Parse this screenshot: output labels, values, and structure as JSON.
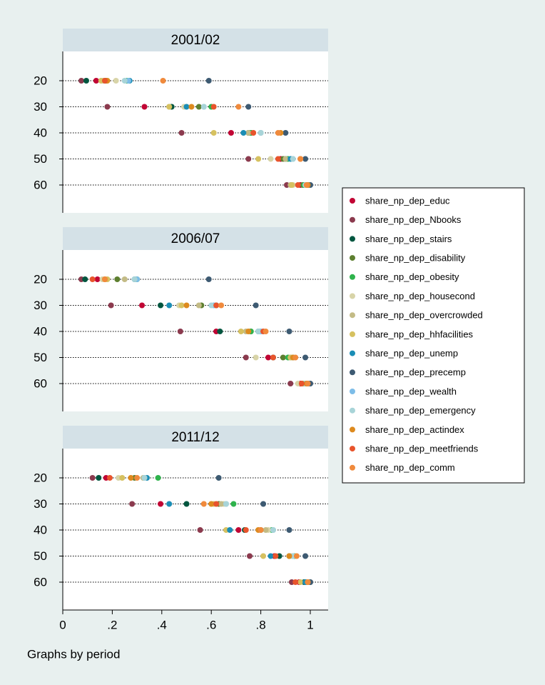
{
  "chart_data": {
    "type": "dot",
    "note": "Graphs by period",
    "categories": [
      20,
      30,
      40,
      50,
      60
    ],
    "xlim": [
      0,
      1
    ],
    "xticks": [
      0,
      {
        "value": 0.2,
        "label": ".2"
      },
      {
        "value": 0.4,
        "label": ".4"
      },
      {
        "value": 0.6,
        "label": ".6"
      },
      {
        "value": 0.8,
        "label": ".8"
      },
      1
    ],
    "series": [
      {
        "name": "share_np_dep_educ",
        "color": "#c10534"
      },
      {
        "name": "share_np_dep_Nbooks",
        "color": "#8b3a4e"
      },
      {
        "name": "share_np_dep_stairs",
        "color": "#00563f"
      },
      {
        "name": "share_np_dep_disability",
        "color": "#5d7f2f"
      },
      {
        "name": "share_np_dep_obesity",
        "color": "#2fb34c"
      },
      {
        "name": "share_np_dep_housecond",
        "color": "#d8d4a8"
      },
      {
        "name": "share_np_dep_overcrowded",
        "color": "#c3bb86"
      },
      {
        "name": "share_np_dep_hhfacilities",
        "color": "#d6c160"
      },
      {
        "name": "share_np_dep_unemp",
        "color": "#1a8db5"
      },
      {
        "name": "share_np_dep_precemp",
        "color": "#3d5a72"
      },
      {
        "name": "share_np_dep_wealth",
        "color": "#7dbde8"
      },
      {
        "name": "share_np_dep_emergency",
        "color": "#a8d4d8"
      },
      {
        "name": "share_np_dep_actindex",
        "color": "#dd8a1e"
      },
      {
        "name": "share_np_dep_meetfriends",
        "color": "#e8542c"
      },
      {
        "name": "share_np_dep_comm",
        "color": "#f08a3c"
      }
    ],
    "panels": [
      {
        "title": "2001/02",
        "values": [
          [
            0.135,
            0.33,
            0.68,
            0.88,
            0.96
          ],
          [
            0.075,
            0.18,
            0.48,
            0.75,
            0.905
          ],
          [
            0.095,
            0.44,
            0.75,
            0.9,
            0.985
          ],
          [
            0.175,
            0.55,
            0.76,
            0.89,
            0.97
          ],
          [
            0.26,
            0.6,
            0.76,
            0.91,
            0.975
          ],
          [
            0.215,
            0.49,
            0.8,
            0.84,
            0.93
          ],
          [
            0.165,
            0.43,
            0.75,
            0.9,
            0.92
          ],
          [
            0.155,
            0.43,
            0.61,
            0.79,
            0.925
          ],
          [
            0.27,
            0.5,
            0.73,
            0.92,
            0.99
          ],
          [
            0.59,
            0.75,
            0.9,
            0.98,
            1.0
          ],
          [
            0.265,
            0.57,
            0.8,
            0.93,
            0.98
          ],
          [
            0.25,
            0.57,
            0.8,
            0.93,
            0.98
          ],
          [
            0.18,
            0.52,
            0.88,
            0.96,
            0.99
          ],
          [
            0.17,
            0.61,
            0.77,
            0.87,
            0.95
          ],
          [
            0.405,
            0.71,
            0.87,
            0.96,
            0.985
          ]
        ]
      },
      {
        "title": "2006/07",
        "values": [
          [
            0.14,
            0.32,
            0.62,
            0.83,
            0.96
          ],
          [
            0.075,
            0.195,
            0.475,
            0.74,
            0.92
          ],
          [
            0.09,
            0.395,
            0.635,
            0.85,
            0.97
          ],
          [
            0.22,
            0.56,
            0.76,
            0.89,
            0.975
          ],
          [
            0.3,
            0.62,
            0.76,
            0.91,
            0.975
          ],
          [
            0.16,
            0.47,
            0.79,
            0.78,
            0.95
          ],
          [
            0.25,
            0.55,
            0.74,
            0.92,
            0.99
          ],
          [
            0.18,
            0.48,
            0.72,
            0.92,
            0.97
          ],
          [
            0.29,
            0.43,
            0.79,
            0.93,
            0.99
          ],
          [
            0.59,
            0.78,
            0.915,
            0.98,
            1.0
          ],
          [
            0.3,
            0.61,
            0.8,
            0.93,
            0.98
          ],
          [
            0.29,
            0.6,
            0.79,
            0.93,
            0.98
          ],
          [
            0.17,
            0.5,
            0.75,
            0.93,
            0.985
          ],
          [
            0.12,
            0.62,
            0.81,
            0.85,
            0.965
          ],
          [
            0.17,
            0.64,
            0.82,
            0.94,
            0.99
          ]
        ]
      },
      {
        "title": "2011/12",
        "values": [
          [
            0.175,
            0.395,
            0.71,
            0.855,
            0.955
          ],
          [
            0.12,
            0.28,
            0.555,
            0.755,
            0.925
          ],
          [
            0.145,
            0.5,
            0.735,
            0.875,
            0.975
          ],
          [
            0.29,
            0.63,
            0.8,
            0.915,
            0.985
          ],
          [
            0.385,
            0.69,
            0.845,
            0.935,
            0.995
          ],
          [
            0.225,
            0.65,
            0.83,
            0.92,
            0.995
          ],
          [
            0.325,
            0.64,
            0.82,
            0.93,
            1.0
          ],
          [
            0.24,
            0.61,
            0.66,
            0.81,
            0.96
          ],
          [
            0.34,
            0.43,
            0.675,
            0.84,
            0.98
          ],
          [
            0.63,
            0.81,
            0.915,
            0.98,
            1.0
          ],
          [
            0.33,
            0.66,
            0.85,
            0.93,
            0.99
          ],
          [
            0.33,
            0.66,
            0.85,
            0.93,
            0.99
          ],
          [
            0.275,
            0.6,
            0.79,
            0.915,
            0.99
          ],
          [
            0.19,
            0.62,
            0.74,
            0.86,
            0.94
          ],
          [
            0.3,
            0.57,
            0.8,
            0.945,
            0.99
          ]
        ]
      }
    ]
  }
}
